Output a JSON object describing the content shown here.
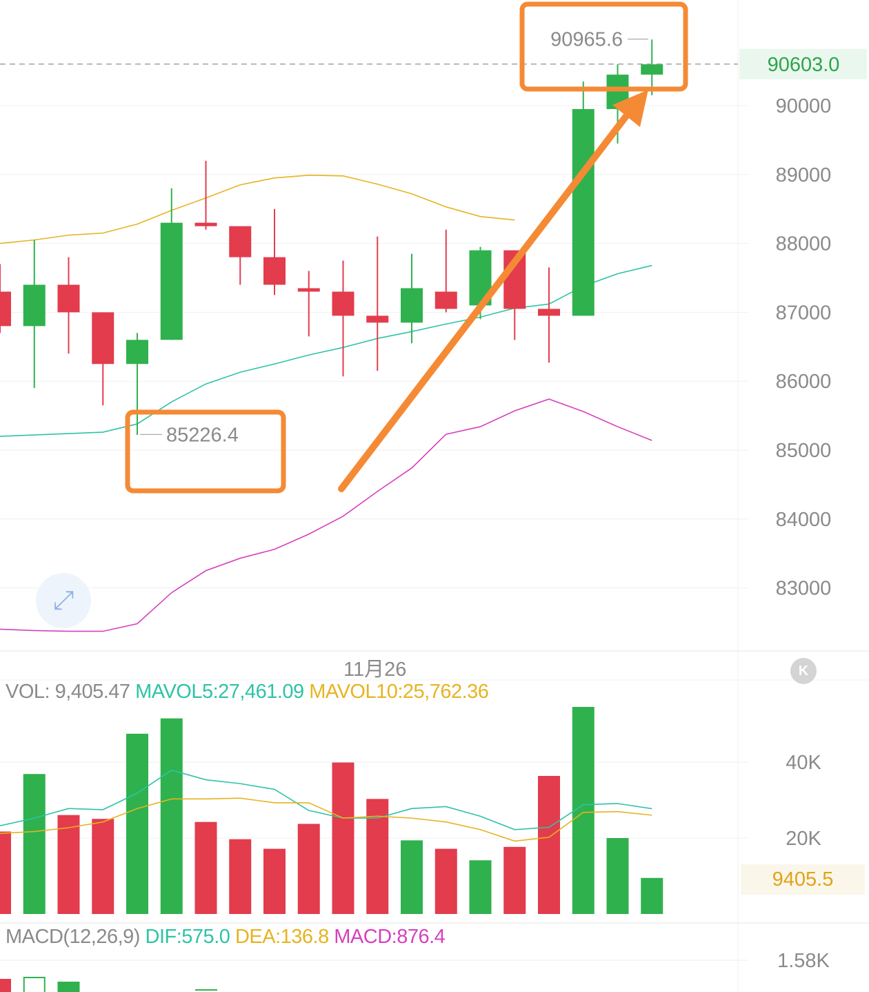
{
  "chart_data": [
    {
      "type": "candlestick",
      "y_ticks": [
        "90000",
        "89000",
        "88000",
        "87000",
        "86000",
        "85000",
        "84000",
        "83000"
      ],
      "ylim": [
        82000,
        91500
      ],
      "current_price": "90603.0",
      "high_marker": "90965.6",
      "low_marker": "85226.4",
      "date_label": "11月26",
      "candles": [
        {
          "o": 87300,
          "h": 87700,
          "l": 86700,
          "c": 86800
        },
        {
          "o": 86800,
          "h": 88050,
          "l": 85900,
          "c": 87400
        },
        {
          "o": 87400,
          "h": 87800,
          "l": 86400,
          "c": 87000
        },
        {
          "o": 87000,
          "h": 87000,
          "l": 85650,
          "c": 86250
        },
        {
          "o": 86250,
          "h": 86700,
          "l": 85220,
          "c": 86600
        },
        {
          "o": 86600,
          "h": 88800,
          "l": 86600,
          "c": 88300
        },
        {
          "o": 88300,
          "h": 89200,
          "l": 88200,
          "c": 88250
        },
        {
          "o": 88250,
          "h": 88250,
          "l": 87400,
          "c": 87800
        },
        {
          "o": 87800,
          "h": 88500,
          "l": 87250,
          "c": 87400
        },
        {
          "o": 87350,
          "h": 87600,
          "l": 86650,
          "c": 87300
        },
        {
          "o": 87300,
          "h": 87750,
          "l": 86070,
          "c": 86950
        },
        {
          "o": 86950,
          "h": 88100,
          "l": 86150,
          "c": 86850
        },
        {
          "o": 86850,
          "h": 87850,
          "l": 86550,
          "c": 87350
        },
        {
          "o": 87300,
          "h": 88200,
          "l": 87000,
          "c": 87050
        },
        {
          "o": 87100,
          "h": 87950,
          "l": 86900,
          "c": 87900
        },
        {
          "o": 87900,
          "h": 87900,
          "l": 86600,
          "c": 87050
        },
        {
          "o": 87050,
          "h": 87650,
          "l": 86270,
          "c": 86950
        },
        {
          "o": 86950,
          "h": 90350,
          "l": 86950,
          "c": 89950
        },
        {
          "o": 89950,
          "h": 90600,
          "l": 89450,
          "c": 90450
        },
        {
          "o": 90450,
          "h": 90960,
          "l": 90150,
          "c": 90600
        }
      ],
      "boll_upper": [
        88000,
        88050,
        88120,
        88150,
        88280,
        88480,
        88660,
        88850,
        88950,
        88990,
        88980,
        88860,
        88720,
        88530,
        88390,
        88340,
        null,
        null,
        null,
        null
      ],
      "boll_mid": [
        85200,
        85220,
        85240,
        85260,
        85380,
        85700,
        85960,
        86130,
        86250,
        86380,
        86490,
        86620,
        86720,
        86830,
        86930,
        87060,
        87120,
        87380,
        87560,
        87680
      ],
      "boll_lower": [
        82400,
        82380,
        82370,
        82370,
        82480,
        82930,
        83250,
        83430,
        83560,
        83780,
        84040,
        84400,
        84740,
        85230,
        85340,
        85570,
        85740,
        85560,
        85340,
        85140
      ]
    },
    {
      "type": "bar",
      "legend": {
        "vol_label": "VOL: 9,405.47",
        "mavol5_label": "MAVOL5:27,461.09",
        "mavol10_label": "MAVOL10:25,762.36"
      },
      "y_ticks": [
        "40K",
        "20K"
      ],
      "current_badge": "9405.5",
      "ylim": [
        0,
        54000
      ],
      "volumes": [
        21500,
        36500,
        25800,
        24800,
        47000,
        51000,
        24000,
        19500,
        17000,
        23500,
        39500,
        30000,
        19200,
        17000,
        14000,
        17500,
        36000,
        54000,
        19800,
        9405.47
      ],
      "mavol5": [
        23000,
        25000,
        27500,
        27200,
        31500,
        37500,
        35000,
        34000,
        32500,
        27000,
        25000,
        25000,
        27500,
        28000,
        25500,
        22000,
        22600,
        28500,
        28800,
        27461.09
      ],
      "mavol10": [
        21000,
        21500,
        22500,
        24000,
        27500,
        30000,
        30000,
        30200,
        29000,
        29000,
        25000,
        25500,
        25000,
        24000,
        22000,
        19000,
        20000,
        26500,
        26700,
        25762.36
      ]
    },
    {
      "type": "bar",
      "legend": {
        "title": "MACD(12,26,9)",
        "dif_label": "DIF:575.0",
        "dea_label": "DEA:136.8",
        "macd_label": "MACD:876.4"
      },
      "y_ticks": [
        "1.58K"
      ]
    }
  ],
  "colors": {
    "up": "#2fb14e",
    "down": "#e23c4d",
    "boll_upper": "#e7b320",
    "boll_mid": "#2ec3a5",
    "boll_lower": "#d640be",
    "highlight": "#f58a35",
    "price_badge_bg": "#eaf7ee",
    "price_badge_text": "#2fa44a",
    "grid": "#efefef",
    "axis_text": "#8a8a8a",
    "mavol5": "#2ec3a5",
    "mavol10": "#e7b320",
    "macd_dif": "#2ec3a5",
    "macd_dea": "#e7b320",
    "macd_macd": "#d640be"
  },
  "ui": {
    "expand_icon": "expand-icon",
    "k_button": "K"
  }
}
